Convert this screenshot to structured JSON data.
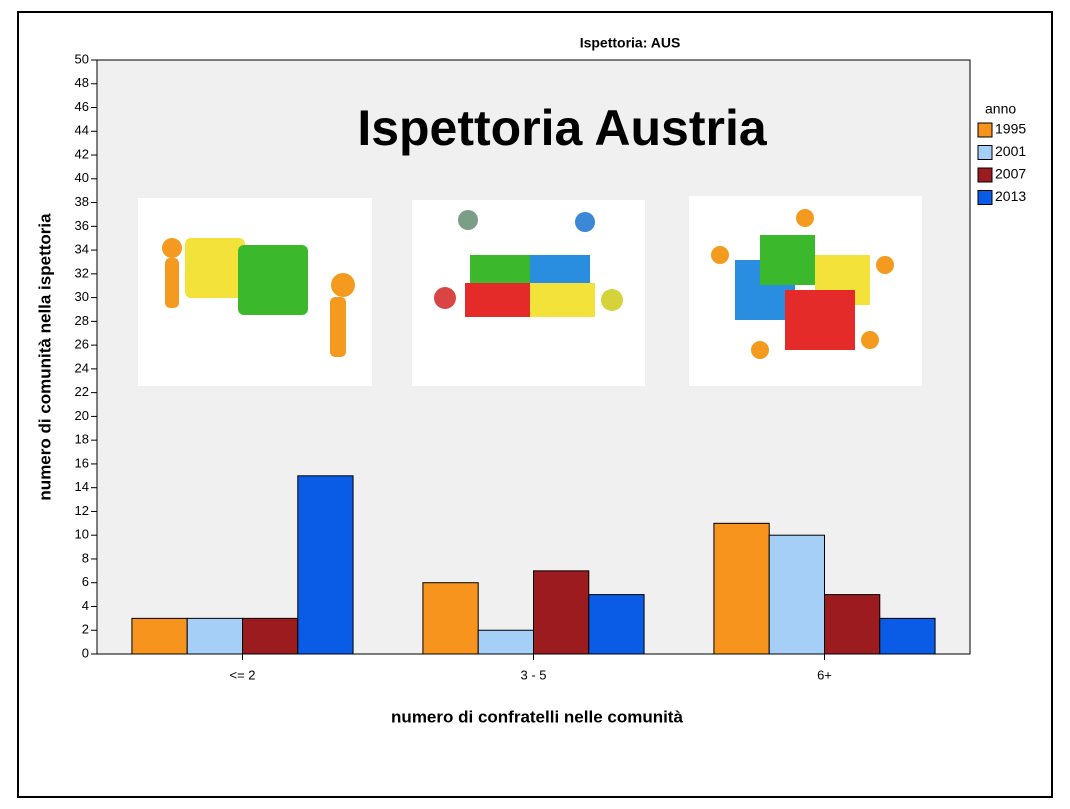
{
  "chart_data": {
    "type": "bar",
    "title": "Ispettoria: AUS",
    "annotations": [
      "Ispettoria Austria"
    ],
    "x_label": "numero di confratelli nelle comunità",
    "y_label": "numero di comunità nella ispettoria",
    "categories": [
      "<= 2",
      "3 - 5",
      "6+"
    ],
    "legend_title": "anno",
    "series": [
      {
        "name": "1995",
        "color": "#f7941d",
        "values": [
          3,
          6,
          11
        ]
      },
      {
        "name": "2001",
        "color": "#a6cff7",
        "values": [
          3,
          2,
          10
        ]
      },
      {
        "name": "2007",
        "color": "#9b1b1f",
        "values": [
          3,
          7,
          5
        ]
      },
      {
        "name": "2013",
        "color": "#0a5ce6",
        "values": [
          15,
          5,
          3
        ]
      }
    ],
    "ylim": [
      0,
      50
    ],
    "yticks": [
      0,
      2,
      4,
      6,
      8,
      10,
      12,
      14,
      16,
      18,
      20,
      22,
      24,
      26,
      28,
      30,
      32,
      34,
      36,
      38,
      40,
      42,
      44,
      46,
      48,
      50
    ],
    "grid": false,
    "legend": "right"
  }
}
